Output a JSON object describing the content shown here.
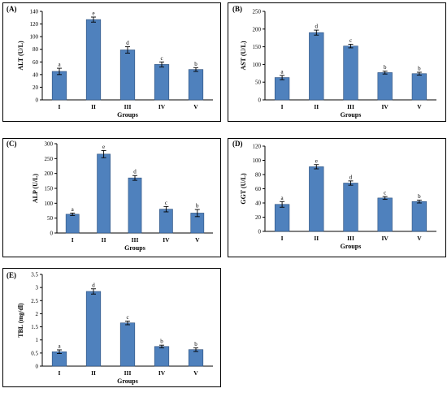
{
  "style": {
    "bar_fill": "#4f81bd",
    "bar_stroke": "#2c4f7c",
    "error_color": "#000000",
    "frame_color": "#000000"
  },
  "chart_data": [
    {
      "panel_label": "(A)",
      "type": "bar",
      "ylabel": "ALT (U/L)",
      "xlabel": "Groups",
      "categories": [
        "I",
        "II",
        "III",
        "IV",
        "V"
      ],
      "values": [
        45,
        127,
        79,
        56,
        48
      ],
      "errors": [
        5,
        4,
        5,
        4,
        3
      ],
      "letters": [
        "a",
        "e",
        "d",
        "c",
        "b"
      ],
      "ylim": [
        0,
        140
      ],
      "yticks": [
        0,
        20,
        40,
        60,
        80,
        100,
        120,
        140
      ],
      "grid": false,
      "legend": "none"
    },
    {
      "panel_label": "(B)",
      "type": "bar",
      "ylabel": "AST (U/L)",
      "xlabel": "Groups",
      "categories": [
        "I",
        "II",
        "III",
        "IV",
        "V"
      ],
      "values": [
        63,
        190,
        152,
        77,
        74
      ],
      "errors": [
        6,
        7,
        5,
        4,
        4
      ],
      "letters": [
        "a",
        "d",
        "c",
        "b",
        "b"
      ],
      "ylim": [
        0,
        250
      ],
      "yticks": [
        0,
        50,
        100,
        150,
        200,
        250
      ],
      "grid": false,
      "legend": "none"
    },
    {
      "panel_label": "(C)",
      "type": "bar",
      "ylabel": "ALP (U/L)",
      "xlabel": "Groups",
      "categories": [
        "I",
        "II",
        "III",
        "IV",
        "V"
      ],
      "values": [
        63,
        265,
        185,
        80,
        67
      ],
      "errors": [
        4,
        12,
        8,
        9,
        12
      ],
      "letters": [
        "a",
        "e",
        "d",
        "c",
        "b"
      ],
      "ylim": [
        0,
        300
      ],
      "yticks": [
        0,
        50,
        100,
        150,
        200,
        250,
        300
      ],
      "grid": false,
      "legend": "none"
    },
    {
      "panel_label": "(D)",
      "type": "bar",
      "ylabel": "GGT (U/L)",
      "xlabel": "Groups",
      "categories": [
        "I",
        "II",
        "III",
        "IV",
        "V"
      ],
      "values": [
        38,
        91,
        68,
        47,
        42
      ],
      "errors": [
        4,
        3,
        3,
        2,
        2
      ],
      "letters": [
        "a",
        "e",
        "d",
        "c",
        "b"
      ],
      "ylim": [
        0,
        120
      ],
      "yticks": [
        0,
        20,
        40,
        60,
        80,
        100,
        120
      ],
      "grid": false,
      "legend": "none"
    },
    {
      "panel_label": "(E)",
      "type": "bar",
      "ylabel": "TBL (mg/dl)",
      "xlabel": "Groups",
      "categories": [
        "I",
        "II",
        "III",
        "IV",
        "V"
      ],
      "values": [
        0.55,
        2.85,
        1.65,
        0.75,
        0.63
      ],
      "errors": [
        0.07,
        0.1,
        0.07,
        0.05,
        0.07
      ],
      "letters": [
        "a",
        "d",
        "c",
        "b",
        "b"
      ],
      "ylim": [
        0,
        3.5
      ],
      "yticks": [
        0,
        0.5,
        1,
        1.5,
        2,
        2.5,
        3,
        3.5
      ],
      "grid": false,
      "legend": "none"
    }
  ]
}
